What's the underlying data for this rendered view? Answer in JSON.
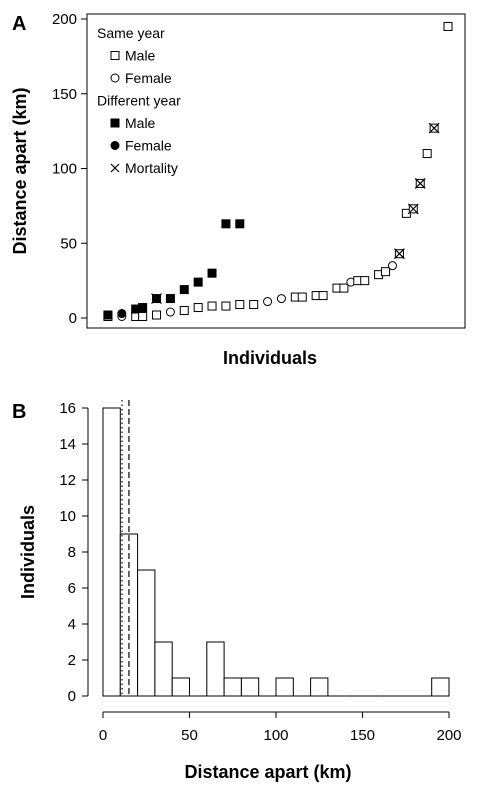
{
  "colors": {
    "ink": "#000000",
    "background": "#ffffff"
  },
  "chart_data": [
    {
      "type": "scatter",
      "panel_label": "A",
      "xlabel": "Individuals",
      "ylabel": "Distance apart (km)",
      "ylim": [
        0,
        200
      ],
      "yticks": [
        0,
        50,
        100,
        150,
        200
      ],
      "xlim": [
        0,
        50
      ],
      "grid": false,
      "legend": {
        "position": "top-left",
        "groups": [
          {
            "title": "Same year",
            "entries": [
              {
                "marker": "open-square",
                "label": "Male"
              },
              {
                "marker": "open-circle",
                "label": "Female"
              }
            ]
          },
          {
            "title": "Different year",
            "entries": [
              {
                "marker": "filled-square",
                "label": "Male"
              },
              {
                "marker": "filled-circle",
                "label": "Female"
              }
            ]
          },
          {
            "title": "",
            "entries": [
              {
                "marker": "cross",
                "label": "Mortality"
              }
            ]
          }
        ]
      },
      "points": [
        {
          "x": 1,
          "y": 1,
          "marker": "open-square"
        },
        {
          "x": 1,
          "y": 2,
          "marker": "filled-square"
        },
        {
          "x": 3,
          "y": 1,
          "marker": "open-circle"
        },
        {
          "x": 3,
          "y": 3,
          "marker": "filled-circle"
        },
        {
          "x": 5,
          "y": 1,
          "marker": "open-square"
        },
        {
          "x": 5,
          "y": 6,
          "marker": "filled-square"
        },
        {
          "x": 6,
          "y": 1,
          "marker": "open-square"
        },
        {
          "x": 6,
          "y": 7,
          "marker": "filled-square"
        },
        {
          "x": 8,
          "y": 2,
          "marker": "open-square"
        },
        {
          "x": 8,
          "y": 13,
          "marker": "filled-square",
          "mortality": true
        },
        {
          "x": 10,
          "y": 4,
          "marker": "open-circle"
        },
        {
          "x": 10,
          "y": 13,
          "marker": "filled-square"
        },
        {
          "x": 12,
          "y": 5,
          "marker": "open-square"
        },
        {
          "x": 12,
          "y": 19,
          "marker": "filled-square"
        },
        {
          "x": 14,
          "y": 7,
          "marker": "open-square"
        },
        {
          "x": 14,
          "y": 24,
          "marker": "filled-square"
        },
        {
          "x": 16,
          "y": 8,
          "marker": "open-square"
        },
        {
          "x": 16,
          "y": 30,
          "marker": "filled-square"
        },
        {
          "x": 18,
          "y": 8,
          "marker": "open-square"
        },
        {
          "x": 18,
          "y": 63,
          "marker": "filled-square"
        },
        {
          "x": 20,
          "y": 9,
          "marker": "open-square"
        },
        {
          "x": 20,
          "y": 63,
          "marker": "filled-square"
        },
        {
          "x": 22,
          "y": 9,
          "marker": "open-square"
        },
        {
          "x": 24,
          "y": 11,
          "marker": "open-circle"
        },
        {
          "x": 26,
          "y": 13,
          "marker": "open-circle"
        },
        {
          "x": 28,
          "y": 14,
          "marker": "open-square"
        },
        {
          "x": 29,
          "y": 14,
          "marker": "open-square"
        },
        {
          "x": 31,
          "y": 15,
          "marker": "open-square"
        },
        {
          "x": 32,
          "y": 15,
          "marker": "open-square"
        },
        {
          "x": 34,
          "y": 20,
          "marker": "open-square"
        },
        {
          "x": 35,
          "y": 20,
          "marker": "open-square"
        },
        {
          "x": 36,
          "y": 24,
          "marker": "open-circle"
        },
        {
          "x": 37,
          "y": 25,
          "marker": "open-square"
        },
        {
          "x": 38,
          "y": 25,
          "marker": "open-square"
        },
        {
          "x": 40,
          "y": 29,
          "marker": "open-square"
        },
        {
          "x": 41,
          "y": 31,
          "marker": "open-square"
        },
        {
          "x": 42,
          "y": 35,
          "marker": "open-circle"
        },
        {
          "x": 43,
          "y": 43,
          "marker": "open-square",
          "mortality": true
        },
        {
          "x": 44,
          "y": 70,
          "marker": "open-square"
        },
        {
          "x": 45,
          "y": 73,
          "marker": "open-square",
          "mortality": true
        },
        {
          "x": 46,
          "y": 90,
          "marker": "open-square",
          "mortality": true
        },
        {
          "x": 47,
          "y": 110,
          "marker": "open-square"
        },
        {
          "x": 48,
          "y": 127,
          "marker": "open-square",
          "mortality": true
        },
        {
          "x": 50,
          "y": 195,
          "marker": "open-square"
        }
      ]
    },
    {
      "type": "bar",
      "subtype": "histogram",
      "panel_label": "B",
      "xlabel": "Distance apart (km)",
      "ylabel": "Individuals",
      "xlim": [
        0,
        200
      ],
      "xticks": [
        0,
        50,
        100,
        150,
        200
      ],
      "ylim": [
        0,
        16
      ],
      "yticks": [
        0,
        2,
        4,
        6,
        8,
        10,
        12,
        14,
        16
      ],
      "bin_width": 10,
      "grid": false,
      "bins": [
        {
          "start": 0,
          "end": 10,
          "count": 16
        },
        {
          "start": 10,
          "end": 20,
          "count": 9
        },
        {
          "start": 20,
          "end": 30,
          "count": 7
        },
        {
          "start": 30,
          "end": 40,
          "count": 3
        },
        {
          "start": 40,
          "end": 50,
          "count": 1
        },
        {
          "start": 50,
          "end": 60,
          "count": 0
        },
        {
          "start": 60,
          "end": 70,
          "count": 3
        },
        {
          "start": 70,
          "end": 80,
          "count": 1
        },
        {
          "start": 80,
          "end": 90,
          "count": 1
        },
        {
          "start": 90,
          "end": 100,
          "count": 0
        },
        {
          "start": 100,
          "end": 110,
          "count": 1
        },
        {
          "start": 110,
          "end": 120,
          "count": 0
        },
        {
          "start": 120,
          "end": 130,
          "count": 1
        },
        {
          "start": 130,
          "end": 140,
          "count": 0
        },
        {
          "start": 140,
          "end": 150,
          "count": 0
        },
        {
          "start": 150,
          "end": 160,
          "count": 0
        },
        {
          "start": 160,
          "end": 170,
          "count": 0
        },
        {
          "start": 170,
          "end": 180,
          "count": 0
        },
        {
          "start": 180,
          "end": 190,
          "count": 0
        },
        {
          "start": 190,
          "end": 200,
          "count": 1
        }
      ],
      "reference_lines": [
        {
          "x": 11,
          "style": "dotted"
        },
        {
          "x": 15,
          "style": "dashed"
        }
      ]
    }
  ]
}
